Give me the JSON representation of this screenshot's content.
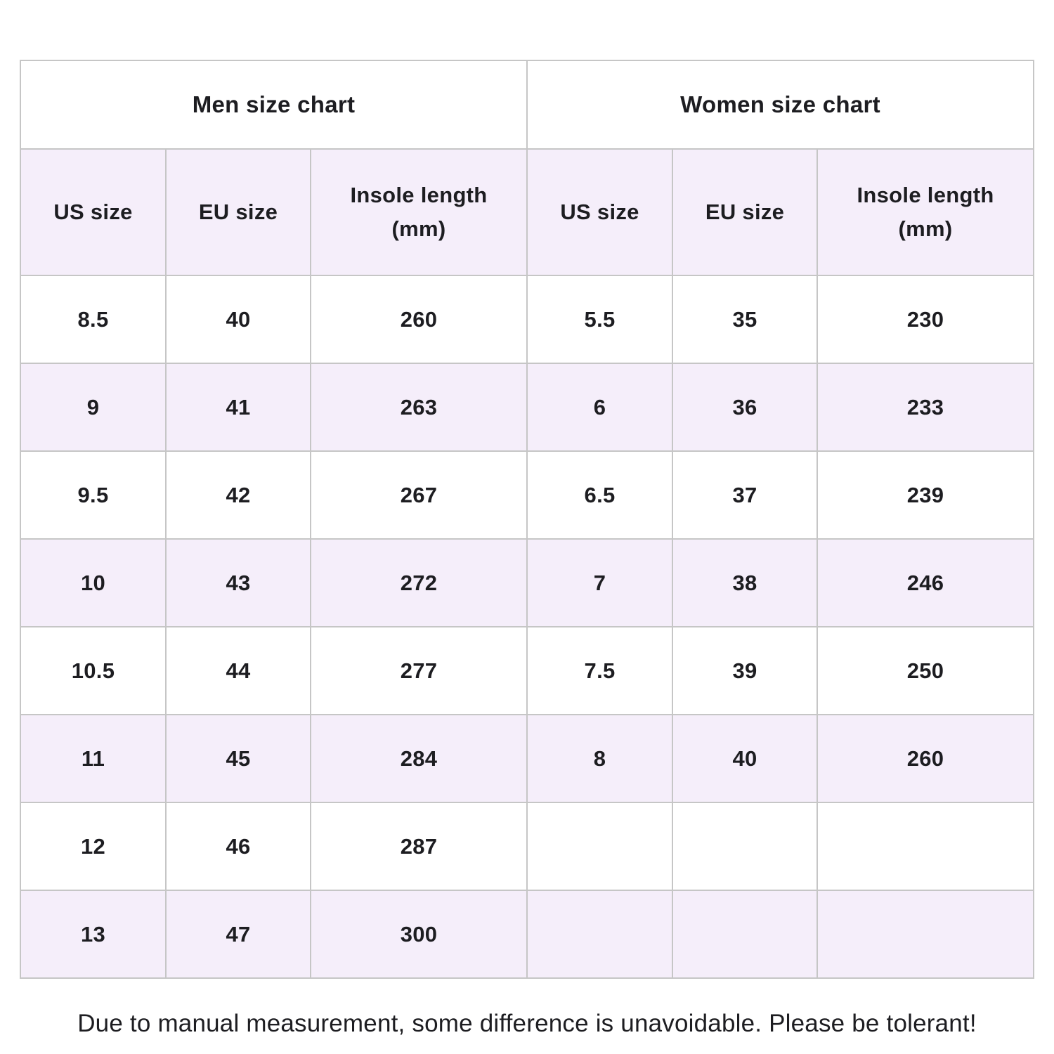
{
  "colors": {
    "page_bg": "#ffffff",
    "stripe_bg": "#f5eefa",
    "row_bg": "#ffffff",
    "border": "#c6c6c6",
    "text": "#1d1d21"
  },
  "men_chart": {
    "title": "Men size chart",
    "columns": {
      "us": "US size",
      "eu": "EU size",
      "insole_line1": "Insole length",
      "insole_line2": "(mm)"
    },
    "rows": [
      {
        "us": "8.5",
        "eu": "40",
        "insole": "260"
      },
      {
        "us": "9",
        "eu": "41",
        "insole": "263"
      },
      {
        "us": "9.5",
        "eu": "42",
        "insole": "267"
      },
      {
        "us": "10",
        "eu": "43",
        "insole": "272"
      },
      {
        "us": "10.5",
        "eu": "44",
        "insole": "277"
      },
      {
        "us": "11",
        "eu": "45",
        "insole": "284"
      },
      {
        "us": "12",
        "eu": "46",
        "insole": "287"
      },
      {
        "us": "13",
        "eu": "47",
        "insole": "300"
      }
    ]
  },
  "women_chart": {
    "title": "Women size chart",
    "columns": {
      "us": "US size",
      "eu": "EU size",
      "insole_line1": "Insole length",
      "insole_line2": "(mm)"
    },
    "rows": [
      {
        "us": "5.5",
        "eu": "35",
        "insole": "230"
      },
      {
        "us": "6",
        "eu": "36",
        "insole": "233"
      },
      {
        "us": "6.5",
        "eu": "37",
        "insole": "239"
      },
      {
        "us": "7",
        "eu": "38",
        "insole": "246"
      },
      {
        "us": "7.5",
        "eu": "39",
        "insole": "250"
      },
      {
        "us": "8",
        "eu": "40",
        "insole": "260"
      },
      {
        "us": "",
        "eu": "",
        "insole": ""
      },
      {
        "us": "",
        "eu": "",
        "insole": ""
      }
    ]
  },
  "caption": "Due to manual measurement, some difference is unavoidable. Please be tolerant!"
}
